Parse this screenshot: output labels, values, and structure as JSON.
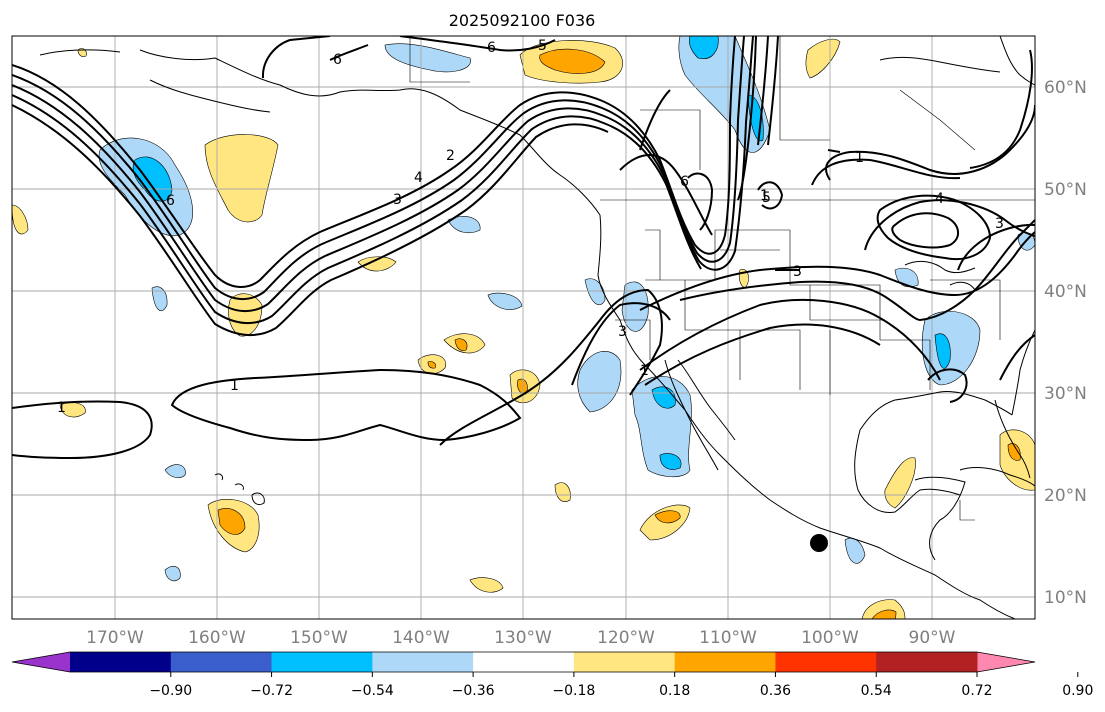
{
  "title": "2025092100 F036",
  "map": {
    "lon_labels": [
      "170°W",
      "160°W",
      "150°W",
      "140°W",
      "130°W",
      "120°W",
      "110°W",
      "100°W",
      "90°W"
    ],
    "lat_labels": [
      "60°N",
      "50°N",
      "40°N",
      "30°N",
      "20°N",
      "10°N"
    ],
    "contour_labels": [
      "6",
      "5",
      "6",
      "6",
      "2",
      "3",
      "4",
      "1",
      "5",
      "6",
      "1",
      "1",
      "4",
      "3",
      "3",
      "3",
      "1",
      "1"
    ],
    "marker": "hurricane-position-dot"
  },
  "colorbar": {
    "tick_labels": [
      "−0.90",
      "−0.72",
      "−0.54",
      "−0.36",
      "−0.18",
      "0.18",
      "0.36",
      "0.54",
      "0.72",
      "0.90"
    ],
    "colors": [
      "#9933cc",
      "#00008b",
      "#3a5fcd",
      "#00bfff",
      "#add8f7",
      "#ffffff",
      "#ffe680",
      "#ffa500",
      "#ff3300",
      "#b22222",
      "#ff88b0"
    ],
    "extend": "both"
  }
}
